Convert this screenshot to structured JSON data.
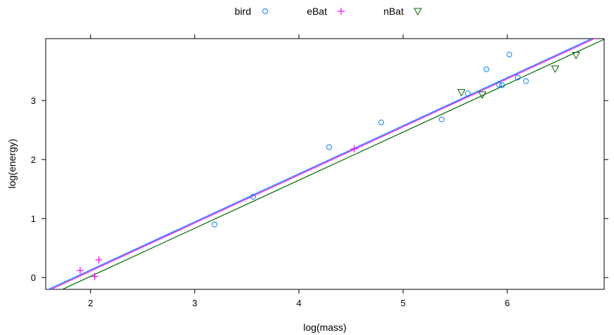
{
  "chart_data": {
    "type": "scatter",
    "xlabel": "log(mass)",
    "ylabel": "log(energy)",
    "xlim": [
      1.57,
      6.93
    ],
    "ylim": [
      -0.2,
      4.05
    ],
    "x_ticks": [
      2,
      3,
      4,
      5,
      6
    ],
    "y_ticks": [
      0,
      1,
      2,
      3
    ],
    "grid": false,
    "legend_position": "top",
    "series": [
      {
        "name": "bird",
        "marker": "circle",
        "color": "#0080ff",
        "points": [
          [
            3.19,
            0.9
          ],
          [
            3.56,
            1.37
          ],
          [
            4.29,
            2.21
          ],
          [
            4.79,
            2.63
          ],
          [
            5.37,
            2.68
          ],
          [
            5.62,
            3.12
          ],
          [
            5.8,
            3.53
          ],
          [
            5.92,
            3.27
          ],
          [
            5.95,
            3.26
          ],
          [
            6.02,
            3.78
          ],
          [
            6.1,
            3.39
          ],
          [
            6.18,
            3.33
          ]
        ],
        "fit": {
          "slope": 0.815,
          "intercept": -1.5
        }
      },
      {
        "name": "eBat",
        "marker": "plus",
        "color": "#ff00ff",
        "points": [
          [
            1.9,
            0.12
          ],
          [
            2.04,
            0.02
          ],
          [
            2.08,
            0.3
          ],
          [
            4.53,
            2.18
          ]
        ],
        "fit": {
          "slope": 0.815,
          "intercept": -1.52
        }
      },
      {
        "name": "nBat",
        "marker": "triangle-down",
        "color": "#006400",
        "points": [
          [
            5.56,
            3.14
          ],
          [
            5.76,
            3.1
          ],
          [
            6.46,
            3.54
          ],
          [
            6.66,
            3.77
          ]
        ],
        "fit": {
          "slope": 0.815,
          "intercept": -1.61
        }
      }
    ]
  }
}
